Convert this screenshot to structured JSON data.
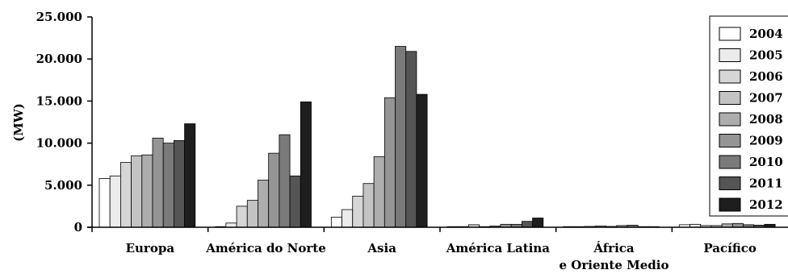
{
  "chart_data": {
    "type": "bar",
    "title": "",
    "xlabel": "",
    "ylabel": "(MW)",
    "ylim": [
      0,
      25000
    ],
    "yticks": [
      0,
      5000,
      10000,
      15000,
      20000,
      25000
    ],
    "ytick_labels": [
      "0",
      "5.000",
      "10.000",
      "15.000",
      "20.000",
      "25.000"
    ],
    "categories": [
      [
        "Europa"
      ],
      [
        "América do Norte"
      ],
      [
        "Asia"
      ],
      [
        "América Latina"
      ],
      [
        "África",
        "e Oriente Medio"
      ],
      [
        "Pacífico"
      ]
    ],
    "legend_position": "right",
    "series": [
      {
        "name": "2004",
        "color": "#ffffff",
        "values": [
          5800,
          0,
          1200,
          0,
          0,
          300
        ]
      },
      {
        "name": "2005",
        "color": "#ececec",
        "values": [
          6100,
          500,
          2100,
          50,
          50,
          350
        ]
      },
      {
        "name": "2006",
        "color": "#d6d6d6",
        "values": [
          7700,
          2500,
          3700,
          300,
          100,
          200
        ]
      },
      {
        "name": "2007",
        "color": "#c3c3c3",
        "values": [
          8500,
          3200,
          5200,
          50,
          150,
          200
        ]
      },
      {
        "name": "2008",
        "color": "#adadad",
        "values": [
          8600,
          5600,
          8400,
          150,
          100,
          400
        ]
      },
      {
        "name": "2009",
        "color": "#959595",
        "values": [
          10600,
          8800,
          15400,
          350,
          200,
          450
        ]
      },
      {
        "name": "2010",
        "color": "#7a7a7a",
        "values": [
          10000,
          11000,
          21500,
          350,
          250,
          300
        ]
      },
      {
        "name": "2011",
        "color": "#555555",
        "values": [
          10300,
          6100,
          20900,
          700,
          50,
          250
        ]
      },
      {
        "name": "2012",
        "color": "#1e1e1e",
        "values": [
          12300,
          14900,
          15800,
          1100,
          50,
          350
        ]
      }
    ]
  }
}
